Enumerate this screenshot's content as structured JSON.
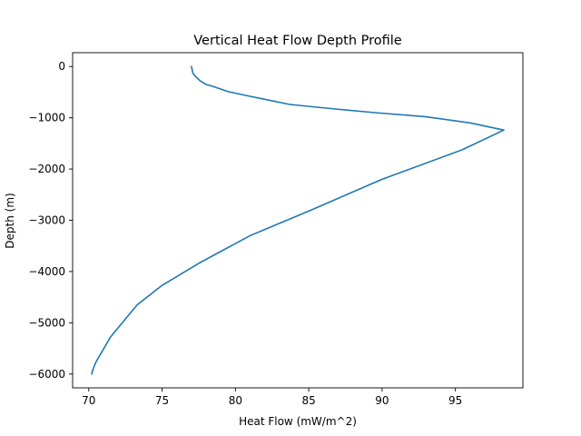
{
  "chart_data": {
    "type": "line",
    "title": "Vertical Heat Flow Depth Profile",
    "xlabel": "Heat Flow (mW/m^2)",
    "ylabel": "Depth (m)",
    "xlim": [
      68.9,
      99.6
    ],
    "ylim": [
      -6270,
      270
    ],
    "xticks": [
      70,
      75,
      80,
      85,
      90,
      95
    ],
    "xtick_labels": [
      "70",
      "75",
      "80",
      "85",
      "90",
      "95"
    ],
    "yticks": [
      0,
      -1000,
      -2000,
      -3000,
      -4000,
      -5000,
      -6000
    ],
    "ytick_labels": [
      "0",
      "−1000",
      "−2000",
      "−3000",
      "−4000",
      "−5000",
      "−6000"
    ],
    "grid": false,
    "colors": {
      "series": "#1f77b4"
    },
    "series": [
      {
        "x": [
          77.0,
          77.1,
          77.3,
          77.6,
          78.0,
          78.5,
          79.5,
          80.8,
          82.0,
          83.7,
          86.5,
          89.5,
          93.0,
          96.0,
          98.3,
          95.5,
          90.0,
          85.0,
          81.0,
          77.5,
          75.0,
          73.3,
          71.5,
          70.5,
          70.3,
          70.2
        ],
        "y": [
          0,
          -130,
          -200,
          -280,
          -350,
          -390,
          -490,
          -570,
          -640,
          -740,
          -820,
          -900,
          -980,
          -1100,
          -1240,
          -1620,
          -2200,
          -2820,
          -3300,
          -3840,
          -4270,
          -4650,
          -5270,
          -5760,
          -5900,
          -6000
        ]
      }
    ]
  }
}
